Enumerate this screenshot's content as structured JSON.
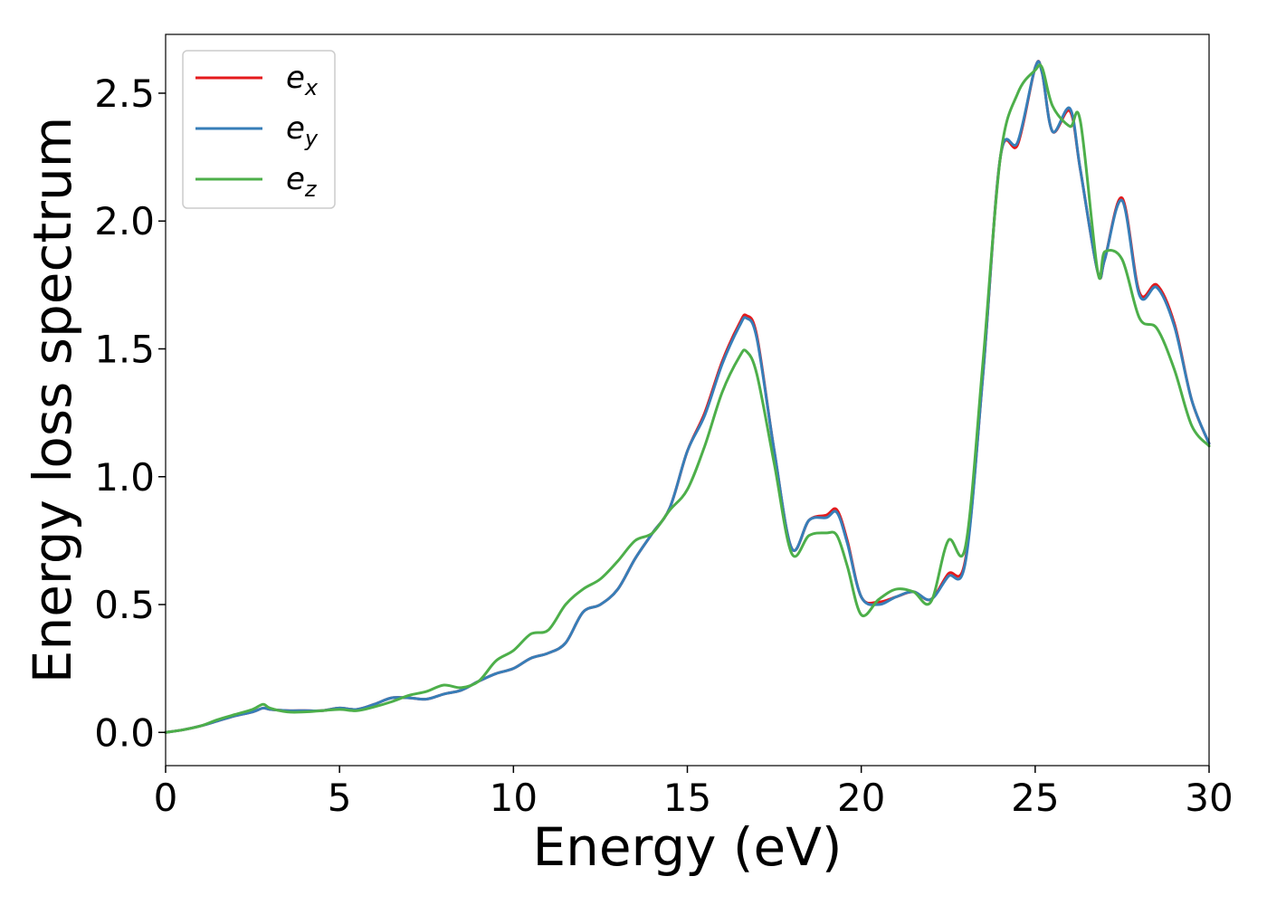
{
  "chart_data": {
    "type": "line",
    "title": "",
    "xlabel": "Energy (eV)",
    "ylabel": "Energy loss spectrum",
    "xlim": [
      0,
      30
    ],
    "ylim": [
      -0.13,
      2.73
    ],
    "xticks": [
      0,
      5,
      10,
      15,
      20,
      25,
      30
    ],
    "xtick_labels": [
      "0",
      "5",
      "10",
      "15",
      "20",
      "25",
      "30"
    ],
    "yticks": [
      0.0,
      0.5,
      1.0,
      1.5,
      2.0,
      2.5
    ],
    "ytick_labels": [
      "0.0",
      "0.5",
      "1.0",
      "1.5",
      "2.0",
      "2.5"
    ],
    "grid": false,
    "legend_position": "top-left",
    "series": [
      {
        "name": "e_x",
        "legend_base": "e",
        "legend_sub": "x",
        "color": "#e41a1c",
        "x": [
          0,
          0.5,
          1,
          1.5,
          2,
          2.5,
          2.8,
          3,
          3.5,
          4,
          4.5,
          5,
          5.5,
          6,
          6.5,
          7,
          7.5,
          8,
          8.5,
          9,
          9.5,
          10,
          10.5,
          11,
          11.5,
          12,
          12.5,
          13,
          13.5,
          14,
          14.5,
          15,
          15.5,
          16,
          16.5,
          16.7,
          17,
          17.5,
          18,
          18.5,
          19,
          19.3,
          19.6,
          20,
          20.5,
          21,
          21.5,
          22,
          22.5,
          23,
          23.5,
          24,
          24.5,
          25,
          25.2,
          25.5,
          26,
          26.3,
          26.8,
          27,
          27.5,
          28,
          28.5,
          29,
          29.5,
          30
        ],
        "y": [
          0,
          0.01,
          0.025,
          0.045,
          0.065,
          0.08,
          0.095,
          0.09,
          0.085,
          0.085,
          0.085,
          0.095,
          0.09,
          0.11,
          0.135,
          0.135,
          0.13,
          0.15,
          0.165,
          0.2,
          0.23,
          0.25,
          0.29,
          0.31,
          0.35,
          0.47,
          0.5,
          0.56,
          0.68,
          0.78,
          0.88,
          1.1,
          1.25,
          1.45,
          1.6,
          1.63,
          1.55,
          1.1,
          0.72,
          0.83,
          0.85,
          0.87,
          0.75,
          0.53,
          0.51,
          0.53,
          0.55,
          0.52,
          0.62,
          0.68,
          1.4,
          2.25,
          2.3,
          2.6,
          2.58,
          2.35,
          2.43,
          2.2,
          1.8,
          1.85,
          2.09,
          1.72,
          1.75,
          1.6,
          1.3,
          1.13
        ]
      },
      {
        "name": "e_y",
        "legend_base": "e",
        "legend_sub": "y",
        "color": "#377eb8",
        "x": [
          0,
          0.5,
          1,
          1.5,
          2,
          2.5,
          2.8,
          3,
          3.5,
          4,
          4.5,
          5,
          5.5,
          6,
          6.5,
          7,
          7.5,
          8,
          8.5,
          9,
          9.5,
          10,
          10.5,
          11,
          11.5,
          12,
          12.5,
          13,
          13.5,
          14,
          14.5,
          15,
          15.5,
          16,
          16.5,
          16.7,
          17,
          17.5,
          18,
          18.5,
          19,
          19.3,
          19.6,
          20,
          20.5,
          21,
          21.5,
          22,
          22.5,
          23,
          23.5,
          24,
          24.5,
          25,
          25.2,
          25.5,
          26,
          26.3,
          26.8,
          27,
          27.5,
          28,
          28.5,
          29,
          29.5,
          30
        ],
        "y": [
          0,
          0.01,
          0.025,
          0.045,
          0.065,
          0.08,
          0.095,
          0.09,
          0.085,
          0.085,
          0.085,
          0.095,
          0.09,
          0.11,
          0.135,
          0.135,
          0.13,
          0.15,
          0.165,
          0.2,
          0.23,
          0.25,
          0.29,
          0.31,
          0.35,
          0.47,
          0.5,
          0.56,
          0.68,
          0.78,
          0.88,
          1.1,
          1.24,
          1.44,
          1.59,
          1.62,
          1.54,
          1.1,
          0.72,
          0.83,
          0.84,
          0.86,
          0.74,
          0.53,
          0.5,
          0.53,
          0.55,
          0.52,
          0.61,
          0.67,
          1.4,
          2.25,
          2.31,
          2.6,
          2.58,
          2.35,
          2.44,
          2.2,
          1.8,
          1.85,
          2.08,
          1.71,
          1.74,
          1.59,
          1.3,
          1.13
        ]
      },
      {
        "name": "e_z",
        "legend_base": "e",
        "legend_sub": "z",
        "color": "#4daf4a",
        "x": [
          0,
          0.5,
          1,
          1.5,
          2,
          2.5,
          2.8,
          3,
          3.5,
          4,
          4.5,
          5,
          5.5,
          6,
          6.5,
          7,
          7.5,
          8,
          8.5,
          9,
          9.5,
          10,
          10.5,
          11,
          11.5,
          12,
          12.5,
          13,
          13.5,
          14,
          14.5,
          15,
          15.5,
          16,
          16.5,
          16.7,
          17,
          17.5,
          18,
          18.5,
          19,
          19.3,
          19.6,
          20,
          20.5,
          21,
          21.5,
          22,
          22.5,
          23,
          23.5,
          24,
          24.5,
          25,
          25.2,
          25.5,
          26,
          26.3,
          26.8,
          27,
          27.5,
          28,
          28.5,
          29,
          29.5,
          30
        ],
        "y": [
          0,
          0.01,
          0.025,
          0.05,
          0.07,
          0.09,
          0.11,
          0.095,
          0.08,
          0.08,
          0.085,
          0.09,
          0.085,
          0.1,
          0.12,
          0.145,
          0.16,
          0.185,
          0.175,
          0.2,
          0.28,
          0.32,
          0.385,
          0.4,
          0.5,
          0.56,
          0.6,
          0.67,
          0.75,
          0.78,
          0.87,
          0.95,
          1.12,
          1.33,
          1.47,
          1.49,
          1.4,
          1.05,
          0.7,
          0.77,
          0.78,
          0.77,
          0.65,
          0.46,
          0.52,
          0.56,
          0.55,
          0.51,
          0.75,
          0.73,
          1.45,
          2.25,
          2.5,
          2.59,
          2.6,
          2.45,
          2.37,
          2.39,
          1.8,
          1.88,
          1.85,
          1.62,
          1.58,
          1.42,
          1.2,
          1.12
        ]
      }
    ]
  }
}
